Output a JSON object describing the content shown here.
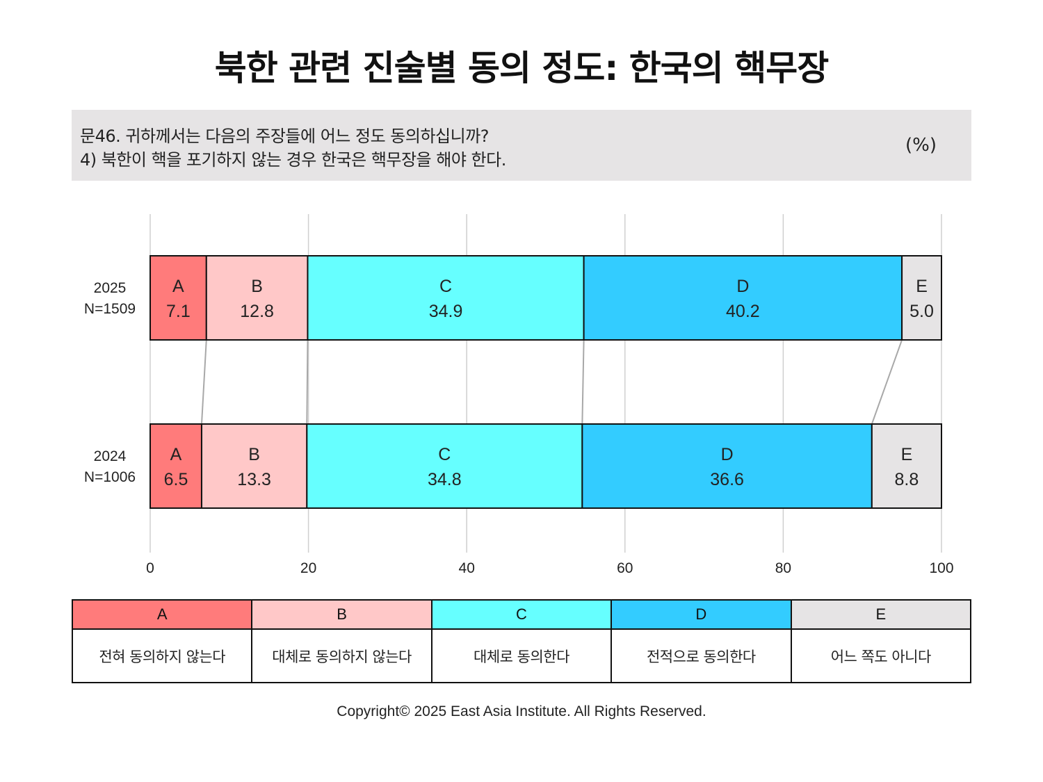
{
  "title": "북한 관련 진술별 동의 정도: 한국의 핵무장",
  "question": {
    "line1": "문46. 귀하께서는 다음의 주장들에 어느 정도 동의하십니까?",
    "line2": "4) 북한이 핵을 포기하지 않는 경우 한국은 핵무장을 해야 한다.",
    "unit": "(%)"
  },
  "chart_data": {
    "type": "bar",
    "stacked": true,
    "orientation": "horizontal",
    "rows": [
      {
        "year": "2025",
        "n": "N=1509"
      },
      {
        "year": "2024",
        "n": "N=1006"
      }
    ],
    "series": [
      {
        "name": "A",
        "color": "#ff7b7b",
        "values": [
          7.1,
          6.5
        ]
      },
      {
        "name": "B",
        "color": "#ffc8c8",
        "values": [
          12.8,
          13.3
        ]
      },
      {
        "name": "C",
        "color": "#66ffff",
        "values": [
          34.9,
          34.8
        ]
      },
      {
        "name": "D",
        "color": "#33ccff",
        "values": [
          40.2,
          36.6
        ]
      },
      {
        "name": "E",
        "color": "#e6e4e5",
        "values": [
          5.0,
          8.8
        ]
      }
    ],
    "value_labels": [
      [
        "7.1",
        "12.8",
        "34.9",
        "40.2",
        "5.0"
      ],
      [
        "6.5",
        "13.3",
        "34.8",
        "36.6",
        "8.8"
      ]
    ],
    "xlim": [
      0,
      100
    ],
    "xticks": [
      0,
      20,
      40,
      60,
      80,
      100
    ],
    "grid": true,
    "connectors": true
  },
  "legend": {
    "items": [
      {
        "key": "A",
        "label": "전혀 동의하지 않는다",
        "color": "#ff7b7b"
      },
      {
        "key": "B",
        "label": "대체로 동의하지 않는다",
        "color": "#ffc8c8"
      },
      {
        "key": "C",
        "label": "대체로 동의한다",
        "color": "#66ffff"
      },
      {
        "key": "D",
        "label": "전적으로 동의한다",
        "color": "#33ccff"
      },
      {
        "key": "E",
        "label": "어느 쪽도 아니다",
        "color": "#e6e4e5"
      }
    ]
  },
  "copyright": "Copyright© 2025 East Asia Institute. All Rights Reserved."
}
